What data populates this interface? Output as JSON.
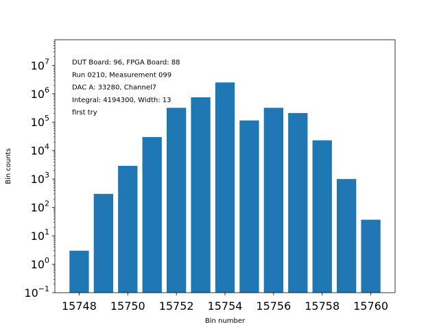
{
  "chart_data": {
    "type": "bar",
    "xlabel": "Bin number",
    "ylabel": "Bin counts",
    "yscale": "log",
    "xlim": [
      15747.0,
      15761.0
    ],
    "ylim_log10": [
      -1,
      7.9
    ],
    "x": [
      15748,
      15749,
      15750,
      15751,
      15752,
      15753,
      15754,
      15755,
      15756,
      15757,
      15758,
      15759,
      15760
    ],
    "values": [
      3,
      300,
      2900,
      30000,
      320000,
      750000,
      2500000,
      115000,
      320000,
      210000,
      23000,
      1000,
      37
    ],
    "x_ticks": [
      15748,
      15750,
      15752,
      15754,
      15756,
      15758,
      15760
    ],
    "y_ticks": [
      {
        "base": "10",
        "exp": "−1",
        "log": -1
      },
      {
        "base": "10",
        "exp": "0",
        "log": 0
      },
      {
        "base": "10",
        "exp": "1",
        "log": 1
      },
      {
        "base": "10",
        "exp": "2",
        "log": 2
      },
      {
        "base": "10",
        "exp": "3",
        "log": 3
      },
      {
        "base": "10",
        "exp": "4",
        "log": 4
      },
      {
        "base": "10",
        "exp": "5",
        "log": 5
      },
      {
        "base": "10",
        "exp": "6",
        "log": 6
      },
      {
        "base": "10",
        "exp": "7",
        "log": 7
      }
    ],
    "annotations": [
      "DUT Board: 96, FPGA Board: 88",
      "Run 0210, Measurement 099",
      "DAC A: 33280, Channel7",
      "Integral: 4194300, Width: 13",
      "first try"
    ],
    "bar_color": "#1f77b4",
    "grid": false,
    "legend": "none"
  }
}
